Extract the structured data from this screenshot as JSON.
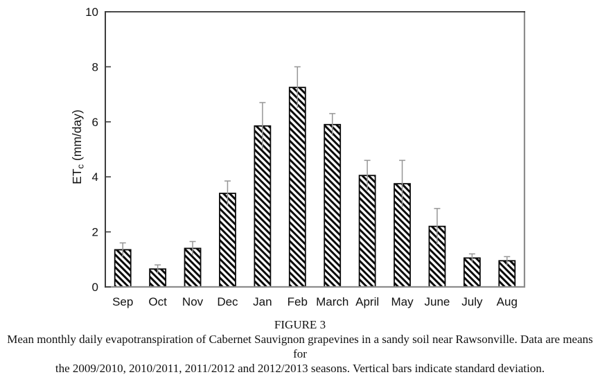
{
  "figure": {
    "caption_title": "FIGURE 3",
    "caption_lines": [
      "Mean monthly daily evapotranspiration of Cabernet Sauvignon grapevines in a sandy soil near Rawsonville. Data are means for",
      "the 2009/2010, 2010/2011, 2011/2012 and 2012/2013 seasons. Vertical bars indicate standard deviation."
    ]
  },
  "chart_data": {
    "type": "bar",
    "title": "",
    "categories": [
      "Sep",
      "Oct",
      "Nov",
      "Dec",
      "Jan",
      "Feb",
      "March",
      "April",
      "May",
      "June",
      "July",
      "Aug"
    ],
    "values": [
      1.35,
      0.65,
      1.4,
      3.4,
      5.85,
      7.25,
      5.9,
      4.05,
      3.75,
      2.2,
      1.05,
      0.95
    ],
    "std_dev": [
      0.25,
      0.15,
      0.25,
      0.45,
      0.85,
      0.75,
      0.4,
      0.55,
      0.85,
      0.65,
      0.15,
      0.15
    ],
    "xlabel": "",
    "ylabel_prefix": "ET",
    "ylabel_sub": "c",
    "ylabel_suffix": " (mm/day)",
    "ylim": [
      0,
      10
    ],
    "y_ticks": [
      0,
      2,
      4,
      6,
      8,
      10
    ],
    "grid": false,
    "legend": false,
    "bar_fill_style": "diagonal-hatch-backslash",
    "bar_outline_color": "#0a0a0a",
    "hatch_color": "#0a0a0a",
    "error_bar_color": "#969696",
    "axis_color": "#3c3c3c",
    "frame_color": "#8c8c8c",
    "text_color": "#111111"
  }
}
